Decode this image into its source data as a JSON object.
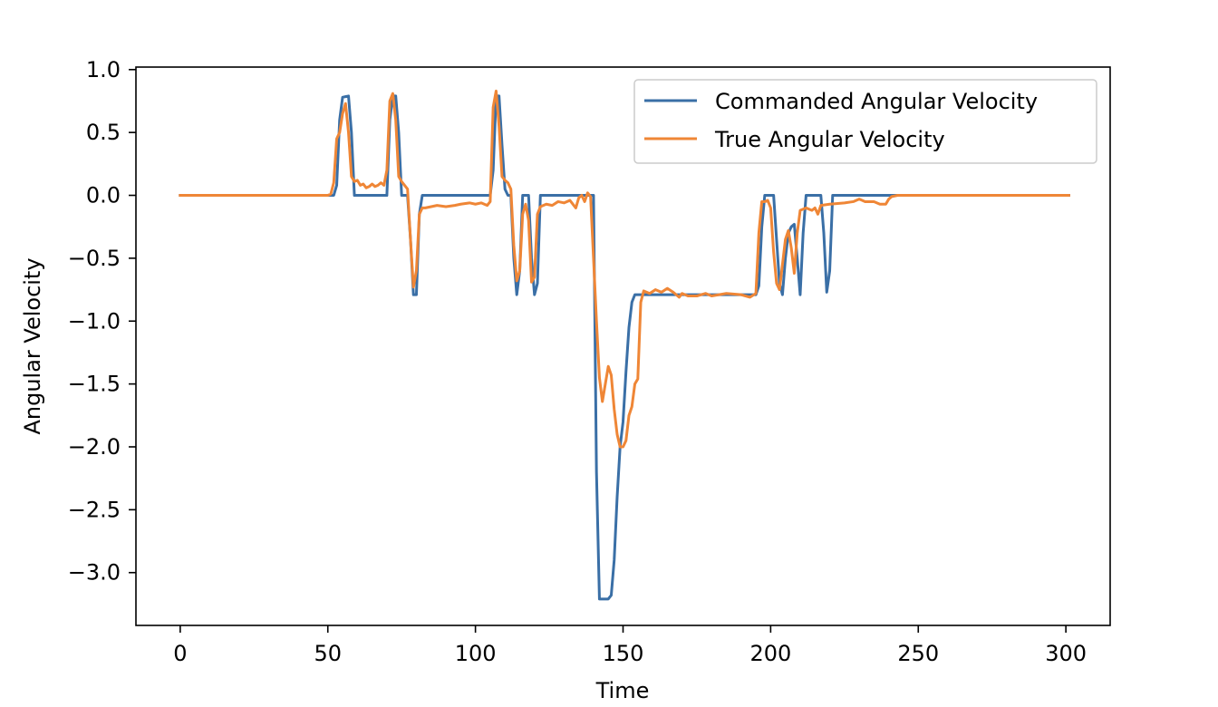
{
  "chart_data": {
    "type": "line",
    "title": "",
    "xlabel": "Time",
    "ylabel": "Angular Velocity",
    "xlim": [
      -15,
      315
    ],
    "ylim": [
      -3.42,
      1.02
    ],
    "xticks": [
      0,
      50,
      100,
      150,
      200,
      250,
      300
    ],
    "xtick_labels": [
      "0",
      "50",
      "100",
      "150",
      "200",
      "250",
      "300"
    ],
    "yticks": [
      1.0,
      0.5,
      0.0,
      -0.5,
      -1.0,
      -1.5,
      -2.0,
      -2.5,
      -3.0
    ],
    "ytick_labels": [
      "1.0",
      "0.5",
      "0.0",
      "−0.5",
      "−1.0",
      "−1.5",
      "−2.0",
      "−2.5",
      "−3.0"
    ],
    "grid": false,
    "legend_position": "top-right",
    "series": [
      {
        "name": "Commanded Angular Velocity",
        "color": "#3a6fa6",
        "points": [
          [
            0,
            0
          ],
          [
            50,
            0
          ],
          [
            52,
            0
          ],
          [
            53,
            0.08
          ],
          [
            54,
            0.6
          ],
          [
            55,
            0.78
          ],
          [
            57,
            0.79
          ],
          [
            58,
            0.5
          ],
          [
            59,
            0
          ],
          [
            70,
            0
          ],
          [
            71,
            0.6
          ],
          [
            72,
            0.79
          ],
          [
            73,
            0.79
          ],
          [
            74,
            0.5
          ],
          [
            75,
            0
          ],
          [
            77,
            0
          ],
          [
            78,
            -0.35
          ],
          [
            79,
            -0.79
          ],
          [
            80,
            -0.79
          ],
          [
            81,
            -0.15
          ],
          [
            82,
            0
          ],
          [
            105,
            0
          ],
          [
            106,
            0.2
          ],
          [
            107,
            0.79
          ],
          [
            108,
            0.79
          ],
          [
            109,
            0.4
          ],
          [
            110,
            0.05
          ],
          [
            111,
            0
          ],
          [
            112,
            0
          ],
          [
            113,
            -0.5
          ],
          [
            114,
            -0.79
          ],
          [
            115,
            -0.6
          ],
          [
            116,
            0
          ],
          [
            118,
            0
          ],
          [
            119,
            -0.5
          ],
          [
            120,
            -0.79
          ],
          [
            121,
            -0.7
          ],
          [
            122,
            0
          ],
          [
            130,
            0
          ],
          [
            138,
            0
          ],
          [
            140,
            0
          ],
          [
            141,
            -2.2
          ],
          [
            142,
            -3.21
          ],
          [
            145,
            -3.21
          ],
          [
            146,
            -3.18
          ],
          [
            147,
            -2.9
          ],
          [
            148,
            -2.4
          ],
          [
            149,
            -2.0
          ],
          [
            150,
            -1.8
          ],
          [
            151,
            -1.4
          ],
          [
            152,
            -1.05
          ],
          [
            153,
            -0.85
          ],
          [
            154,
            -0.79
          ],
          [
            160,
            -0.79
          ],
          [
            180,
            -0.79
          ],
          [
            195,
            -0.79
          ],
          [
            196,
            -0.72
          ],
          [
            197,
            -0.25
          ],
          [
            198,
            0
          ],
          [
            201,
            0
          ],
          [
            202,
            -0.35
          ],
          [
            203,
            -0.7
          ],
          [
            204,
            -0.79
          ],
          [
            205,
            -0.5
          ],
          [
            206,
            -0.3
          ],
          [
            207,
            -0.25
          ],
          [
            208,
            -0.23
          ],
          [
            209,
            -0.5
          ],
          [
            210,
            -0.79
          ],
          [
            211,
            -0.3
          ],
          [
            212,
            0
          ],
          [
            217,
            0
          ],
          [
            218,
            -0.3
          ],
          [
            219,
            -0.77
          ],
          [
            220,
            -0.6
          ],
          [
            221,
            0
          ],
          [
            225,
            0
          ],
          [
            250,
            0
          ],
          [
            280,
            0
          ],
          [
            301,
            0
          ]
        ]
      },
      {
        "name": "True Angular Velocity",
        "color": "#ef8636",
        "points": [
          [
            0,
            0
          ],
          [
            50,
            0
          ],
          [
            51,
            0.01
          ],
          [
            52,
            0.1
          ],
          [
            53,
            0.45
          ],
          [
            54,
            0.5
          ],
          [
            55,
            0.65
          ],
          [
            56,
            0.73
          ],
          [
            57,
            0.5
          ],
          [
            58,
            0.15
          ],
          [
            59,
            0.11
          ],
          [
            60,
            0.12
          ],
          [
            61,
            0.08
          ],
          [
            62,
            0.09
          ],
          [
            63,
            0.06
          ],
          [
            64,
            0.07
          ],
          [
            65,
            0.09
          ],
          [
            66,
            0.07
          ],
          [
            67,
            0.08
          ],
          [
            68,
            0.1
          ],
          [
            69,
            0.08
          ],
          [
            70,
            0.2
          ],
          [
            71,
            0.75
          ],
          [
            72,
            0.81
          ],
          [
            73,
            0.6
          ],
          [
            74,
            0.15
          ],
          [
            75,
            0.11
          ],
          [
            76,
            0.08
          ],
          [
            77,
            0.05
          ],
          [
            78,
            -0.35
          ],
          [
            79,
            -0.73
          ],
          [
            80,
            -0.6
          ],
          [
            81,
            -0.15
          ],
          [
            82,
            -0.1
          ],
          [
            83,
            -0.1
          ],
          [
            85,
            -0.09
          ],
          [
            87,
            -0.08
          ],
          [
            90,
            -0.09
          ],
          [
            93,
            -0.08
          ],
          [
            95,
            -0.07
          ],
          [
            98,
            -0.06
          ],
          [
            100,
            -0.07
          ],
          [
            102,
            -0.06
          ],
          [
            104,
            -0.08
          ],
          [
            105,
            -0.05
          ],
          [
            106,
            0.7
          ],
          [
            107,
            0.83
          ],
          [
            108,
            0.55
          ],
          [
            109,
            0.15
          ],
          [
            110,
            0.12
          ],
          [
            111,
            0.1
          ],
          [
            112,
            0.05
          ],
          [
            113,
            -0.4
          ],
          [
            114,
            -0.68
          ],
          [
            115,
            -0.6
          ],
          [
            116,
            -0.15
          ],
          [
            117,
            -0.07
          ],
          [
            118,
            -0.2
          ],
          [
            119,
            -0.69
          ],
          [
            120,
            -0.65
          ],
          [
            121,
            -0.15
          ],
          [
            122,
            -0.09
          ],
          [
            124,
            -0.07
          ],
          [
            126,
            -0.08
          ],
          [
            128,
            -0.05
          ],
          [
            130,
            -0.06
          ],
          [
            132,
            -0.04
          ],
          [
            134,
            -0.1
          ],
          [
            135,
            -0.02
          ],
          [
            136,
            0
          ],
          [
            137,
            -0.05
          ],
          [
            138,
            0.02
          ],
          [
            139,
            -0.01
          ],
          [
            140,
            -0.5
          ],
          [
            141,
            -1.0
          ],
          [
            142,
            -1.45
          ],
          [
            143,
            -1.64
          ],
          [
            144,
            -1.5
          ],
          [
            145,
            -1.36
          ],
          [
            146,
            -1.43
          ],
          [
            147,
            -1.7
          ],
          [
            148,
            -1.9
          ],
          [
            149,
            -2.0
          ],
          [
            150,
            -2.0
          ],
          [
            151,
            -1.95
          ],
          [
            152,
            -1.75
          ],
          [
            153,
            -1.68
          ],
          [
            154,
            -1.5
          ],
          [
            155,
            -1.46
          ],
          [
            156,
            -0.85
          ],
          [
            157,
            -0.76
          ],
          [
            159,
            -0.78
          ],
          [
            161,
            -0.75
          ],
          [
            163,
            -0.77
          ],
          [
            165,
            -0.74
          ],
          [
            167,
            -0.77
          ],
          [
            169,
            -0.81
          ],
          [
            170,
            -0.78
          ],
          [
            172,
            -0.8
          ],
          [
            175,
            -0.8
          ],
          [
            178,
            -0.78
          ],
          [
            180,
            -0.8
          ],
          [
            185,
            -0.78
          ],
          [
            190,
            -0.79
          ],
          [
            193,
            -0.81
          ],
          [
            195,
            -0.78
          ],
          [
            196,
            -0.3
          ],
          [
            197,
            -0.05
          ],
          [
            198,
            -0.05
          ],
          [
            199,
            -0.04
          ],
          [
            200,
            -0.1
          ],
          [
            201,
            -0.45
          ],
          [
            202,
            -0.7
          ],
          [
            203,
            -0.75
          ],
          [
            204,
            -0.55
          ],
          [
            205,
            -0.35
          ],
          [
            206,
            -0.28
          ],
          [
            207,
            -0.42
          ],
          [
            208,
            -0.62
          ],
          [
            209,
            -0.3
          ],
          [
            210,
            -0.12
          ],
          [
            212,
            -0.1
          ],
          [
            214,
            -0.12
          ],
          [
            215,
            -0.1
          ],
          [
            216,
            -0.15
          ],
          [
            217,
            -0.08
          ],
          [
            220,
            -0.07
          ],
          [
            225,
            -0.06
          ],
          [
            228,
            -0.05
          ],
          [
            230,
            -0.03
          ],
          [
            232,
            -0.05
          ],
          [
            235,
            -0.05
          ],
          [
            237,
            -0.07
          ],
          [
            239,
            -0.07
          ],
          [
            240,
            -0.03
          ],
          [
            241,
            -0.01
          ],
          [
            243,
            0
          ],
          [
            250,
            0
          ],
          [
            260,
            0
          ],
          [
            280,
            0
          ],
          [
            301,
            0
          ]
        ]
      }
    ]
  }
}
